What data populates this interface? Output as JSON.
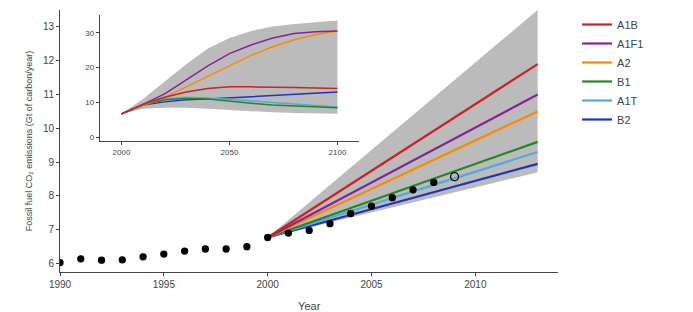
{
  "chart_data": [
    {
      "type": "line",
      "xlabel": "Year",
      "ylabel": "Fossil fuel CO₂ emissions (Gt of carbon/year)",
      "xlim": [
        1990,
        2014
      ],
      "ylim": [
        5.75,
        13.5
      ],
      "xticks": [
        1990,
        1995,
        2000,
        2005,
        2010
      ],
      "yticks": [
        6,
        7,
        8,
        9,
        10,
        11,
        12,
        13
      ],
      "grid": false,
      "legend": "right",
      "band": {
        "color": "#bbbbbb",
        "x": [
          2000,
          2013
        ],
        "lower": [
          6.77,
          8.7
        ],
        "upper": [
          6.77,
          13.5
        ]
      },
      "series": [
        {
          "name": "A1B",
          "color": "#cc2222",
          "x": [
            2000,
            2013
          ],
          "values": [
            6.77,
            11.9
          ]
        },
        {
          "name": "A1F1",
          "color": "#882299",
          "x": [
            2000,
            2013
          ],
          "values": [
            6.77,
            11.0
          ]
        },
        {
          "name": "A2",
          "color": "#ff8800",
          "x": [
            2000,
            2013
          ],
          "values": [
            6.77,
            10.5
          ]
        },
        {
          "name": "B1",
          "color": "#228822",
          "x": [
            2000,
            2013
          ],
          "values": [
            6.77,
            9.6
          ]
        },
        {
          "name": "A1T",
          "color": "#55aadd",
          "x": [
            2000,
            2013
          ],
          "values": [
            6.77,
            9.3
          ]
        },
        {
          "name": "B2",
          "color": "#2233bb",
          "x": [
            2000,
            2013
          ],
          "values": [
            6.77,
            8.95
          ]
        }
      ],
      "observed": {
        "color": "#000000",
        "marker": "circle",
        "x": [
          1990,
          1991,
          1992,
          1993,
          1994,
          1995,
          1996,
          1997,
          1998,
          1999,
          2000,
          2001,
          2002,
          2003,
          2004,
          2005,
          2006,
          2007,
          2008
        ],
        "values": [
          6.03,
          6.14,
          6.1,
          6.11,
          6.2,
          6.28,
          6.37,
          6.43,
          6.43,
          6.5,
          6.77,
          6.9,
          6.98,
          7.18,
          7.48,
          7.7,
          7.95,
          8.18,
          8.4
        ]
      },
      "open_points": {
        "color": "#000000",
        "marker": "open_circle",
        "x": [
          2009
        ],
        "values": [
          8.57
        ]
      }
    },
    {
      "type": "line",
      "xlim": [
        1990,
        2110
      ],
      "ylim": [
        -1,
        35
      ],
      "xticks": [
        2000,
        2050,
        2100
      ],
      "yticks": [
        0,
        10,
        20,
        30
      ],
      "grid": false,
      "x": [
        2000,
        2010,
        2020,
        2030,
        2040,
        2050,
        2060,
        2070,
        2080,
        2090,
        2100
      ],
      "band": {
        "color": "#bbbbbb",
        "upper": [
          6.77,
          11.0,
          16.0,
          21.0,
          25.5,
          28.5,
          30.5,
          31.8,
          32.5,
          33.0,
          33.5
        ],
        "lower": [
          6.77,
          8.2,
          8.5,
          8.5,
          8.2,
          7.8,
          7.5,
          7.2,
          7.0,
          6.9,
          6.8
        ]
      },
      "series": [
        {
          "name": "A1B",
          "color": "#cc2222",
          "values": [
            6.77,
            9.5,
            11.5,
            13.0,
            14.0,
            14.5,
            14.5,
            14.5,
            14.3,
            14.2,
            14.0
          ]
        },
        {
          "name": "A1F1",
          "color": "#882299",
          "values": [
            6.77,
            9.5,
            12.5,
            16.5,
            20.5,
            24.0,
            26.5,
            28.5,
            29.8,
            30.3,
            30.5
          ]
        },
        {
          "name": "A2",
          "color": "#ff8800",
          "values": [
            6.77,
            9.3,
            11.5,
            14.5,
            17.5,
            20.5,
            23.5,
            26.0,
            28.0,
            29.5,
            30.5
          ]
        },
        {
          "name": "B1",
          "color": "#228822",
          "values": [
            6.77,
            9.3,
            10.8,
            11.2,
            11.0,
            10.3,
            9.8,
            9.3,
            9.0,
            8.8,
            8.5
          ]
        },
        {
          "name": "A1T",
          "color": "#55aadd",
          "values": [
            6.77,
            9.3,
            11.0,
            11.5,
            11.3,
            11.0,
            10.5,
            10.0,
            9.5,
            9.0,
            8.7
          ]
        },
        {
          "name": "B2",
          "color": "#2233bb",
          "values": [
            6.77,
            9.3,
            10.2,
            10.8,
            11.0,
            11.3,
            11.6,
            12.1,
            12.4,
            12.6,
            13.0
          ]
        }
      ]
    }
  ]
}
